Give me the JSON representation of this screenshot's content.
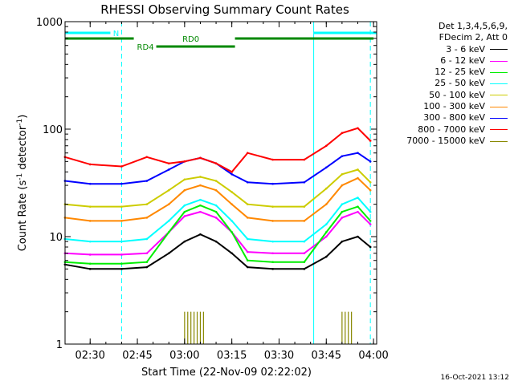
{
  "chart_data": {
    "type": "line",
    "title": "RHESSI Observing Summary Count Rates",
    "xlabel": "Start Time (22-Nov-09 02:22:02)",
    "ylabel": "Count Rate (s⁻¹ detector⁻¹)",
    "ylabel_parts": [
      "Count Rate (s",
      "-1",
      " detector",
      "-1",
      ")"
    ],
    "yscale": "log",
    "ylim": [
      1,
      1000
    ],
    "xlim": [
      "02:22:02",
      "04:01:00"
    ],
    "xticks": [
      "02:30",
      "02:45",
      "03:00",
      "03:15",
      "03:30",
      "03:45",
      "04:00"
    ],
    "yticks": [
      "1",
      "10",
      "100",
      "1000"
    ],
    "legend_header": [
      "Det 1,3,4,5,6,9,",
      "FDecim 2, Att 0"
    ],
    "series": [
      {
        "name": "3 - 6 keV",
        "color": "#000000",
        "x": [
          "02:22",
          "02:30",
          "02:40",
          "02:48",
          "02:55",
          "03:00",
          "03:05",
          "03:10",
          "03:15",
          "03:20",
          "03:28",
          "03:38",
          "03:45",
          "03:50",
          "03:55",
          "03:59"
        ],
        "values": [
          5.5,
          5,
          5,
          5.2,
          7,
          9,
          10.5,
          9,
          7,
          5.2,
          5,
          5,
          6.5,
          9,
          10,
          8
        ]
      },
      {
        "name": "6 - 12 keV",
        "color": "#ff00ff",
        "x": [
          "02:22",
          "02:30",
          "02:40",
          "02:48",
          "02:55",
          "03:00",
          "03:05",
          "03:10",
          "03:15",
          "03:20",
          "03:28",
          "03:38",
          "03:45",
          "03:50",
          "03:55",
          "03:59"
        ],
        "values": [
          7,
          6.8,
          6.8,
          7,
          11,
          15.5,
          17,
          15,
          11,
          7.2,
          7,
          7,
          10,
          15,
          17,
          13
        ]
      },
      {
        "name": "12 - 25 keV",
        "color": "#00ee00",
        "x": [
          "02:22",
          "02:30",
          "02:40",
          "02:48",
          "02:55",
          "03:00",
          "03:05",
          "03:10",
          "03:15",
          "03:20",
          "03:28",
          "03:38",
          "03:45",
          "03:50",
          "03:55",
          "03:59"
        ],
        "values": [
          5.8,
          5.6,
          5.6,
          5.8,
          11,
          17,
          19.5,
          17,
          11,
          6,
          5.8,
          5.8,
          11,
          17,
          19,
          14
        ]
      },
      {
        "name": "25 - 50 keV",
        "color": "#00ffff",
        "x": [
          "02:22",
          "02:30",
          "02:40",
          "02:48",
          "02:55",
          "03:00",
          "03:05",
          "03:10",
          "03:15",
          "03:20",
          "03:28",
          "03:38",
          "03:45",
          "03:50",
          "03:55",
          "03:59"
        ],
        "values": [
          9.5,
          9,
          9,
          9.5,
          14,
          19.5,
          22,
          19.5,
          14,
          9.5,
          9,
          9,
          13,
          20,
          23,
          17
        ]
      },
      {
        "name": "50 - 100 keV",
        "color": "#cccc00",
        "x": [
          "02:22",
          "02:30",
          "02:40",
          "02:48",
          "02:55",
          "03:00",
          "03:05",
          "03:10",
          "03:15",
          "03:20",
          "03:28",
          "03:38",
          "03:45",
          "03:50",
          "03:55",
          "03:59"
        ],
        "values": [
          20,
          19,
          19,
          20,
          27,
          34,
          36,
          33,
          26,
          20,
          19,
          19,
          28,
          38,
          42,
          32
        ]
      },
      {
        "name": "100 - 300 keV",
        "color": "#ff8800",
        "x": [
          "02:22",
          "02:30",
          "02:40",
          "02:48",
          "02:55",
          "03:00",
          "03:05",
          "03:10",
          "03:15",
          "03:20",
          "03:28",
          "03:38",
          "03:45",
          "03:50",
          "03:55",
          "03:59"
        ],
        "values": [
          15,
          14,
          14,
          15,
          20,
          27,
          30,
          27,
          20,
          15,
          14,
          14,
          20,
          30,
          35,
          27
        ]
      },
      {
        "name": "300 - 800 keV",
        "color": "#0000ff",
        "x": [
          "02:22",
          "02:30",
          "02:40",
          "02:48",
          "02:55",
          "03:00",
          "03:05",
          "03:10",
          "03:15",
          "03:20",
          "03:28",
          "03:38",
          "03:45",
          "03:50",
          "03:55",
          "03:59"
        ],
        "values": [
          33,
          31,
          31,
          33,
          42,
          50,
          54,
          48,
          38,
          32,
          31,
          32,
          44,
          56,
          60,
          50
        ]
      },
      {
        "name": "800 - 7000 keV",
        "color": "#ff0000",
        "x": [
          "02:22",
          "02:30",
          "02:40",
          "02:48",
          "02:55",
          "03:00",
          "03:05",
          "03:10",
          "03:15",
          "03:20",
          "03:28",
          "03:38",
          "03:45",
          "03:50",
          "03:55",
          "03:59"
        ],
        "values": [
          55,
          47,
          45,
          55,
          48,
          50,
          54,
          48,
          40,
          60,
          52,
          52,
          70,
          92,
          102,
          78
        ]
      },
      {
        "name": "7000 - 15000 keV",
        "color": "#888800",
        "x": [
          "03:00",
          "03:01",
          "03:02",
          "03:03",
          "03:04",
          "03:05",
          "03:06",
          "03:50",
          "03:51",
          "03:52",
          "03:53"
        ],
        "values": [
          2,
          2,
          2,
          2,
          2,
          2,
          2,
          2,
          2,
          2,
          2
        ]
      }
    ],
    "annotations": [
      {
        "text": "N",
        "color": "#00ffff",
        "x_start": "02:22",
        "x_end": "02:40"
      },
      {
        "text": "RD0",
        "color": "#008800",
        "x_start": "02:22",
        "x_end": "04:00"
      },
      {
        "text": "RD4",
        "color": "#008800",
        "x_start": "02:51",
        "x_end": "03:16"
      }
    ],
    "vertical_markers": [
      {
        "x": "02:40",
        "style": "dashed",
        "color": "#00ffff"
      },
      {
        "x": "03:41",
        "style": "solid",
        "color": "#00ffff"
      },
      {
        "x": "03:59",
        "style": "dashed",
        "color": "#00ffff"
      }
    ],
    "grid": false,
    "legend_position": "right"
  },
  "footer": {
    "timestamp": "16-Oct-2021 13:12"
  }
}
